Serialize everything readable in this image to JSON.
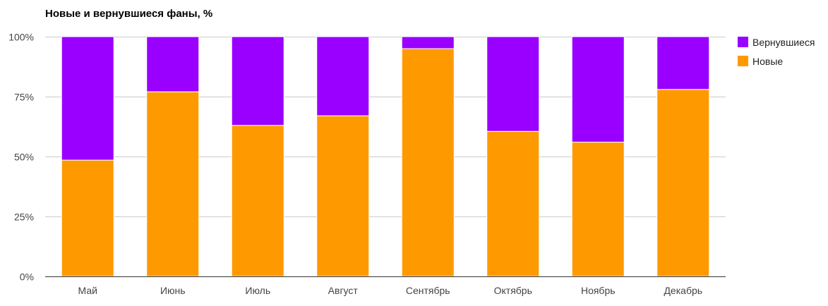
{
  "chart_data": {
    "type": "bar",
    "stacked": true,
    "title": "Новые и вернувшиеся фаны, %",
    "xlabel": "",
    "ylabel": "",
    "ylim": [
      0,
      100
    ],
    "yticks": [
      0,
      25,
      50,
      75,
      100
    ],
    "ytick_labels": [
      "0%",
      "25%",
      "50%",
      "75%",
      "100%"
    ],
    "grid": true,
    "legend_position": "right",
    "categories": [
      "Май",
      "Июнь",
      "Июль",
      "Август",
      "Сентябрь",
      "Октябрь",
      "Ноябрь",
      "Декабрь"
    ],
    "series": [
      {
        "name": "Новые",
        "color": "#ff9900",
        "values": [
          48.5,
          77,
          63,
          67,
          95,
          60.5,
          56,
          78
        ]
      },
      {
        "name": "Вернувшиеся",
        "color": "#9900ff",
        "values": [
          51.5,
          23,
          37,
          33,
          5,
          39.5,
          44,
          22
        ]
      }
    ],
    "legend": [
      {
        "label": "Вернувшиеся",
        "color": "#9900ff"
      },
      {
        "label": "Новые",
        "color": "#ff9900"
      }
    ]
  }
}
